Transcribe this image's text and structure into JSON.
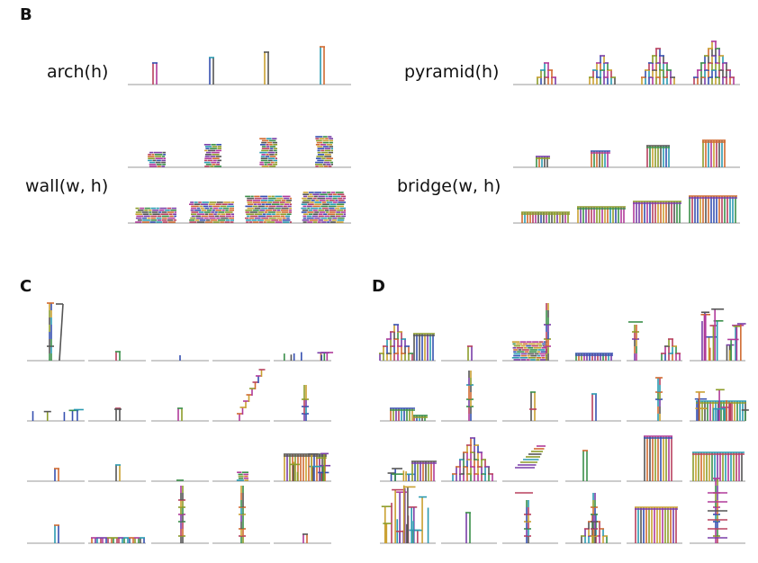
{
  "panels": {
    "b": {
      "letter": "B",
      "arch_label": "arch(h)",
      "pyramid_label": "pyramid(h)",
      "wall_label": "wall(w, h)",
      "bridge_label": "bridge(w, h)"
    },
    "c": {
      "letter": "C"
    },
    "d": {
      "letter": "D"
    }
  },
  "colors": [
    "#b8405e",
    "#3a8f4a",
    "#3650b0",
    "#c9a030",
    "#7a3ea8",
    "#2a9ab0",
    "#d06a30",
    "#555555",
    "#8c9c2a",
    "#b03a9a"
  ]
}
